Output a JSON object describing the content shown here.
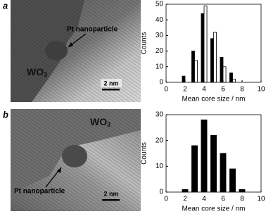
{
  "images": [
    {
      "label": "a",
      "annotation": "Pt nanoparticle",
      "material": "WO",
      "material_sub": "3",
      "scale": "2 nm"
    },
    {
      "label": "b",
      "annotation": "Pt nanoparticle",
      "material": "WO",
      "material_sub": "3",
      "scale": "2 nm"
    }
  ],
  "chart_data": [
    {
      "type": "histogram",
      "xlabel": "Mean core size / nm",
      "ylabel": "Counts",
      "bins": [
        1.5,
        2.5,
        3.5,
        4.5,
        5.5,
        6.5,
        7.5
      ],
      "series": [
        {
          "color": "#000000",
          "values": [
            4,
            20,
            44,
            28,
            16,
            6
          ]
        },
        {
          "color": "#ffffff",
          "values": [
            0,
            14,
            49,
            32,
            10,
            2
          ]
        }
      ],
      "xlim": [
        0,
        10
      ],
      "xticks": [
        0,
        2,
        4,
        6,
        8,
        10
      ],
      "ylim": [
        0,
        50
      ],
      "yticks": [
        0,
        10,
        20,
        30,
        40,
        50
      ]
    },
    {
      "type": "histogram",
      "xlabel": "Mean core size / nm",
      "ylabel": "Counts",
      "bins": [
        1.5,
        2.5,
        3.5,
        4.5,
        5.5,
        6.5,
        7.5,
        8.5
      ],
      "series": [
        {
          "color": "#000000",
          "values": [
            1,
            18,
            28,
            22,
            15,
            9,
            1
          ]
        }
      ],
      "xlim": [
        0,
        10
      ],
      "xticks": [
        0,
        2,
        4,
        6,
        8,
        10
      ],
      "ylim": [
        0,
        30
      ],
      "yticks": [
        0,
        10,
        20,
        30
      ]
    }
  ]
}
